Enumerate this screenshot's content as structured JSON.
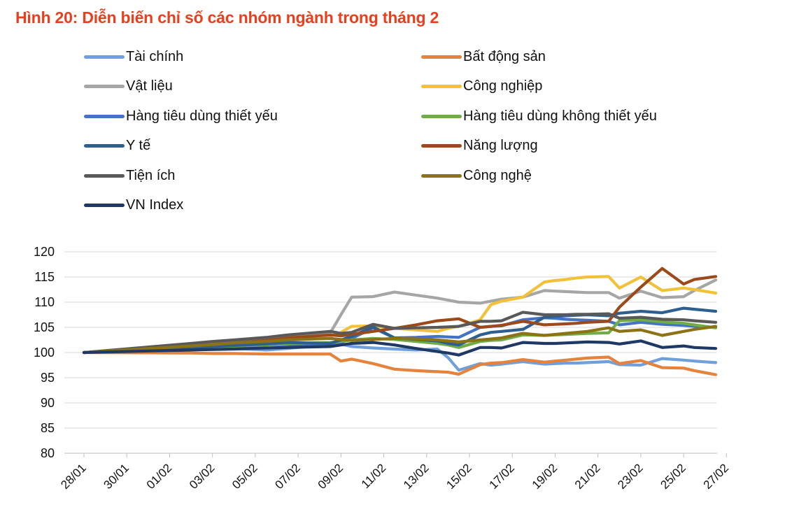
{
  "title": "Hình 20: Diễn biến chỉ số các nhóm ngành trong tháng 2",
  "chart_data": {
    "type": "line",
    "title": "Hình 20: Diễn biến chỉ số các nhóm ngành trong tháng 2",
    "xlabel": "",
    "ylabel": "",
    "ylim": [
      80,
      120
    ],
    "yticks": [
      "120",
      "115",
      "110",
      "105",
      "100",
      "95",
      "90",
      "85",
      "80"
    ],
    "x_tick_labels": [
      "28/01",
      "30/01",
      "01/02",
      "03/02",
      "05/02",
      "07/02",
      "09/02",
      "11/02",
      "13/02",
      "15/02",
      "17/02",
      "19/02",
      "21/02",
      "23/02",
      "25/02",
      "27/02"
    ],
    "x_start": "28/01",
    "x_end_days": 31,
    "grid": true,
    "legend_position": "top",
    "series": [
      {
        "name": "Tài chính",
        "color": "#6fa0dc",
        "days": [
          0,
          10,
          12,
          14,
          17,
          19,
          23,
          24,
          25,
          27,
          29,
          31,
          33,
          34,
          35,
          37,
          38,
          39,
          41,
          43,
          44,
          45,
          46,
          47,
          49,
          50,
          52,
          54,
          56,
          57,
          59
        ],
        "values": [
          100,
          100.5,
          100.8,
          100.8,
          100.5,
          100.8,
          101.6,
          101.7,
          101.2,
          100.9,
          100.7,
          100.5,
          100.7,
          99.0,
          96.5,
          97.8,
          97.5,
          97.7,
          98.2,
          97.7,
          97.8,
          97.9,
          97.9,
          98.0,
          98.2,
          97.6,
          97.5,
          98.8,
          98.5,
          98.3,
          98.0
        ]
      },
      {
        "name": "Bất động sản",
        "color": "#e5823c",
        "days": [
          0,
          10,
          12,
          14,
          17,
          19,
          23,
          24,
          25,
          27,
          29,
          31,
          33,
          34,
          35,
          37,
          38,
          39,
          41,
          43,
          44,
          45,
          46,
          47,
          49,
          50,
          52,
          54,
          56,
          57,
          59
        ],
        "values": [
          100,
          99.9,
          99.8,
          99.8,
          99.7,
          99.7,
          99.7,
          98.3,
          98.7,
          97.8,
          96.7,
          96.4,
          96.2,
          96.1,
          95.7,
          97.6,
          97.9,
          98.0,
          98.6,
          98.1,
          98.3,
          98.5,
          98.7,
          98.9,
          99.1,
          97.8,
          98.4,
          97.0,
          96.9,
          96.4,
          95.6
        ]
      },
      {
        "name": "Vật liệu",
        "color": "#a6a6a6",
        "days": [
          0,
          10,
          12,
          14,
          17,
          19,
          23,
          24,
          25,
          27,
          29,
          31,
          33,
          34,
          35,
          37,
          38,
          39,
          41,
          43,
          44,
          45,
          46,
          47,
          49,
          50,
          52,
          54,
          56,
          57,
          59
        ],
        "values": [
          100,
          101.5,
          101.8,
          102.0,
          102.6,
          103.0,
          103.9,
          107.5,
          111.0,
          111.1,
          112.0,
          111.4,
          110.8,
          110.4,
          110.0,
          109.8,
          110.2,
          110.6,
          111.0,
          112.3,
          112.2,
          112.1,
          112.0,
          111.9,
          111.9,
          110.8,
          112.2,
          110.9,
          111.1,
          112.3,
          114.4
        ]
      },
      {
        "name": "Công nghiệp",
        "color": "#f2c13a",
        "days": [
          0,
          10,
          12,
          14,
          17,
          19,
          23,
          24,
          25,
          27,
          29,
          31,
          33,
          34,
          35,
          37,
          38,
          39,
          41,
          43,
          44,
          45,
          46,
          47,
          49,
          50,
          52,
          54,
          56,
          57,
          59
        ],
        "values": [
          100,
          101.2,
          101.5,
          101.8,
          102.3,
          102.8,
          103.2,
          104.0,
          105.2,
          105.3,
          104.8,
          104.5,
          104.2,
          104.8,
          105.2,
          106.5,
          109.5,
          110.2,
          111.0,
          114.0,
          114.3,
          114.5,
          114.8,
          115.0,
          115.1,
          112.8,
          115.0,
          112.3,
          112.8,
          112.5,
          111.8
        ]
      },
      {
        "name": "Hàng tiêu dùng thiết yếu",
        "color": "#4472c4",
        "days": [
          0,
          10,
          12,
          14,
          17,
          19,
          23,
          24,
          25,
          27,
          29,
          31,
          33,
          34,
          35,
          37,
          38,
          39,
          41,
          43,
          44,
          45,
          46,
          47,
          49,
          50,
          52,
          54,
          56,
          57,
          59
        ],
        "values": [
          100,
          100.8,
          101.0,
          101.2,
          101.5,
          101.6,
          101.5,
          102.0,
          102.8,
          104.9,
          102.9,
          103.0,
          103.2,
          103.1,
          103.0,
          105.0,
          105.2,
          105.3,
          106.5,
          106.9,
          106.8,
          106.6,
          106.5,
          106.4,
          106.2,
          105.5,
          106.0,
          105.6,
          105.4,
          105.2,
          105.0
        ]
      },
      {
        "name": "Hàng tiêu dùng không thiết yếu",
        "color": "#70ad47",
        "days": [
          0,
          10,
          12,
          14,
          17,
          19,
          23,
          24,
          25,
          27,
          29,
          31,
          33,
          34,
          35,
          37,
          38,
          39,
          41,
          43,
          44,
          45,
          46,
          47,
          49,
          50,
          52,
          54,
          56,
          57,
          59
        ],
        "values": [
          100,
          100.8,
          101.0,
          101.2,
          101.5,
          101.8,
          102.0,
          102.2,
          102.5,
          102.8,
          102.6,
          102.2,
          101.8,
          101.5,
          101.0,
          102.2,
          102.4,
          102.5,
          103.5,
          103.4,
          103.5,
          103.6,
          103.7,
          103.8,
          103.9,
          106.3,
          106.5,
          106.1,
          105.8,
          105.5,
          104.9
        ]
      },
      {
        "name": "Y tế",
        "color": "#2e5f8f",
        "days": [
          0,
          10,
          12,
          14,
          17,
          19,
          23,
          24,
          25,
          27,
          29,
          31,
          33,
          34,
          35,
          37,
          38,
          39,
          41,
          43,
          44,
          45,
          46,
          47,
          49,
          50,
          52,
          54,
          56,
          57,
          59
        ],
        "values": [
          100,
          101.0,
          101.2,
          101.4,
          101.7,
          102.0,
          101.8,
          102.5,
          103.2,
          105.1,
          102.9,
          102.6,
          102.3,
          101.8,
          101.5,
          103.5,
          104.0,
          104.2,
          104.6,
          107.0,
          107.2,
          107.3,
          107.4,
          107.5,
          107.3,
          107.8,
          108.2,
          107.9,
          108.8,
          108.6,
          108.2
        ]
      },
      {
        "name": "Năng lượng",
        "color": "#9c4a1c",
        "days": [
          0,
          10,
          12,
          14,
          17,
          19,
          23,
          24,
          25,
          27,
          29,
          31,
          33,
          34,
          35,
          37,
          38,
          39,
          41,
          43,
          44,
          45,
          46,
          47,
          49,
          50,
          52,
          54,
          56,
          57,
          59
        ],
        "values": [
          100,
          101.3,
          101.6,
          101.9,
          102.4,
          102.9,
          103.5,
          103.3,
          103.6,
          104.2,
          104.8,
          105.5,
          106.3,
          106.5,
          106.7,
          105.0,
          105.2,
          105.4,
          106.2,
          105.5,
          105.6,
          105.7,
          105.8,
          106.0,
          106.2,
          109.0,
          113.0,
          116.7,
          113.6,
          114.5,
          115.1
        ]
      },
      {
        "name": "Tiện ích",
        "color": "#595959",
        "days": [
          0,
          10,
          12,
          14,
          17,
          19,
          23,
          24,
          25,
          27,
          29,
          31,
          33,
          34,
          35,
          37,
          38,
          39,
          41,
          43,
          44,
          45,
          46,
          47,
          49,
          50,
          52,
          54,
          56,
          57,
          59
        ],
        "values": [
          100,
          101.8,
          102.2,
          102.5,
          103.0,
          103.5,
          104.2,
          103.8,
          104.0,
          105.6,
          104.8,
          104.9,
          105.0,
          105.1,
          105.2,
          106.2,
          106.2,
          106.3,
          108.0,
          107.5,
          107.5,
          107.5,
          107.6,
          107.6,
          107.7,
          106.8,
          107.0,
          106.6,
          106.5,
          106.3,
          106.0
        ]
      },
      {
        "name": "Công nghệ",
        "color": "#8c7316",
        "days": [
          0,
          10,
          12,
          14,
          17,
          19,
          23,
          24,
          25,
          27,
          29,
          31,
          33,
          34,
          35,
          37,
          38,
          39,
          41,
          43,
          44,
          45,
          46,
          47,
          49,
          50,
          52,
          54,
          56,
          57,
          59
        ],
        "values": [
          100,
          101.3,
          101.6,
          101.9,
          102.2,
          102.5,
          102.8,
          102.6,
          102.4,
          102.6,
          102.8,
          102.7,
          102.5,
          102.3,
          102.1,
          102.5,
          102.7,
          102.9,
          103.8,
          103.4,
          103.6,
          103.8,
          104.0,
          104.2,
          104.9,
          104.2,
          104.5,
          103.4,
          104.2,
          104.6,
          105.2
        ]
      },
      {
        "name": "VN Index",
        "color": "#1f3864",
        "days": [
          0,
          10,
          12,
          14,
          17,
          19,
          23,
          24,
          25,
          27,
          29,
          31,
          33,
          34,
          35,
          37,
          38,
          39,
          41,
          43,
          44,
          45,
          46,
          47,
          49,
          50,
          52,
          54,
          56,
          57,
          59
        ],
        "values": [
          100,
          100.5,
          100.6,
          100.7,
          100.9,
          101.0,
          101.2,
          101.5,
          101.8,
          102.0,
          101.5,
          100.8,
          100.2,
          99.9,
          99.5,
          101.0,
          101.0,
          100.9,
          102.0,
          101.8,
          101.8,
          101.9,
          102.0,
          102.1,
          102.0,
          101.7,
          102.3,
          101.0,
          101.3,
          101.0,
          100.8
        ]
      }
    ]
  }
}
